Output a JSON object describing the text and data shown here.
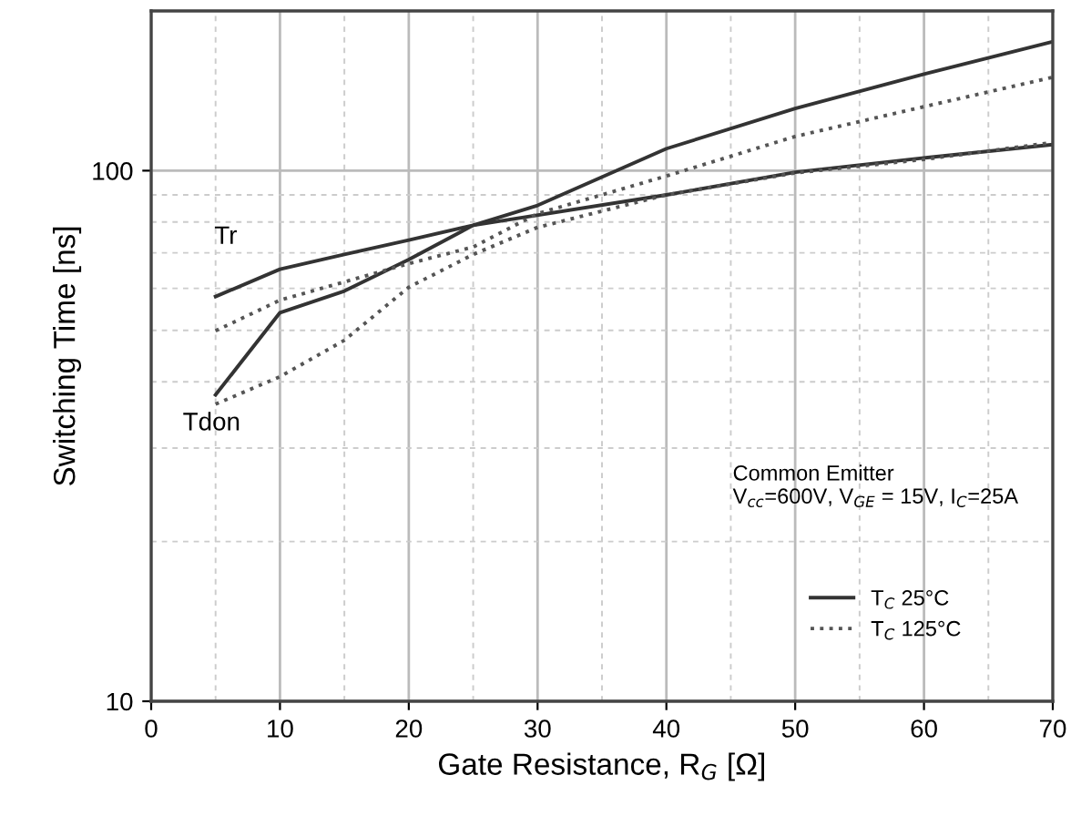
{
  "chart_data": {
    "type": "line",
    "xlabel": "Gate Resistance, R$_{G}$ [Ω]",
    "ylabel": "Switching Time [ns]",
    "log": "y",
    "xlim": [
      0,
      70
    ],
    "xticks": [
      0,
      10,
      20,
      30,
      40,
      50,
      60,
      70
    ],
    "ylim": [
      10,
      200
    ],
    "yticks": [
      10,
      100
    ],
    "grid": true,
    "legend": "bottom right",
    "series": [
      {
        "name": "T$_{C}$ 25°C",
        "color": "#333333",
        "line_style": "solid",
        "x": [
          5,
          10,
          15,
          20,
          25,
          30,
          40,
          50,
          60,
          70
        ],
        "values": [
          57.9,
          65.2,
          69.5,
          74,
          78.9,
          86,
          110,
          131,
          152,
          175
        ]
      },
      {
        "color": "#333333",
        "line_style": "solid",
        "x": [
          5,
          10,
          15,
          20,
          25,
          40,
          50,
          60,
          70
        ],
        "values": [
          37.8,
          54,
          59.3,
          68,
          78.9,
          90,
          99.3,
          105.7,
          112
        ]
      },
      {
        "name": "T$_{C}$ 125°C",
        "color": "#555555",
        "line_style": "dotted",
        "x": [
          5,
          10,
          20,
          25,
          30,
          40,
          50,
          60,
          70
        ],
        "values": [
          49.9,
          57,
          66.8,
          71.8,
          83,
          97.7,
          116,
          132,
          150
        ]
      },
      {
        "color": "#555555",
        "line_style": "dotted",
        "x": [
          5,
          10,
          15,
          20,
          25,
          30,
          40,
          50,
          60,
          70
        ],
        "values": [
          36.3,
          40.9,
          47.9,
          60.3,
          69.5,
          78.2,
          90,
          99,
          105,
          113
        ]
      }
    ],
    "annotations": [
      "Tr",
      "Tdon",
      "Common Emitter\nV$_{cc}$=600V, V$_{GE}$ = 15V, I$_{C}$=25A"
    ]
  }
}
